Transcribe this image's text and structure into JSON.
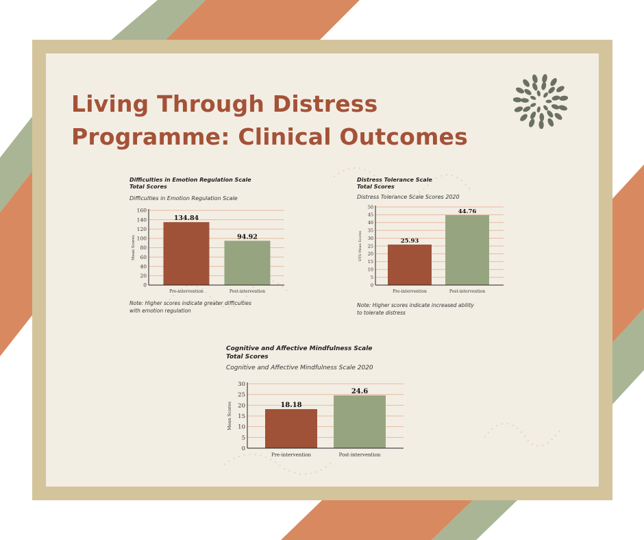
{
  "header": {
    "title_line1": "Living Through Distress",
    "title_line2": "Programme: Clinical Outcomes"
  },
  "logo": {
    "icon": "leaf-wreath-logo"
  },
  "colors": {
    "title": "#a45238",
    "pre_bar": "#9f5237",
    "post_bar": "#96a57f",
    "gridline": "#e7b8a2",
    "frame": "#d3c49b",
    "panel": "#f3eee4",
    "stripe_orange": "#d9895f",
    "stripe_green": "#a9b595"
  },
  "chart_data": [
    {
      "type": "bar",
      "title_line1": "Difficulties in Emotion Regulation Scale",
      "title_line2": "Total Scores",
      "subtitle": "Difficulties in Emotion Regulation Scale",
      "ylabel": "Mean Scores",
      "categories": [
        "Pre-intervention",
        "Post-intervention"
      ],
      "values": [
        134.84,
        94.92
      ],
      "value_labels": [
        "134.84",
        "94.92"
      ],
      "ylim": [
        0,
        160
      ],
      "yticks": [
        0,
        20,
        40,
        60,
        80,
        100,
        120,
        140,
        160
      ],
      "grid": true,
      "note_line1": "Note: Higher scores indicate greater difficulties",
      "note_line2": "with emotion regulation"
    },
    {
      "type": "bar",
      "title_line1": "Distress Tolerance Scale",
      "title_line2": "Total Scores",
      "subtitle": "Distress Tolerance Scale Scores 2020",
      "ylabel": "DTS Mean Scores",
      "categories": [
        "Pre-intervention",
        "Post-intervention"
      ],
      "values": [
        25.93,
        44.76
      ],
      "value_labels": [
        "25.93",
        "44.76"
      ],
      "ylim": [
        0,
        50
      ],
      "yticks": [
        0,
        5,
        10,
        15,
        20,
        25,
        30,
        35,
        40,
        45,
        50
      ],
      "grid": true,
      "note_line1": "Note: Higher scores indicate increased ability",
      "note_line2": "to tolerate distress"
    },
    {
      "type": "bar",
      "title_line1": "Cognitive and Affective Mindfulness Scale",
      "title_line2": "Total Scores",
      "subtitle": "Cognitive and Affective Mindfulness Scale 2020",
      "ylabel": "Mean Scores",
      "categories": [
        "Pre-intervention",
        "Post-intervention"
      ],
      "values": [
        18.18,
        24.6
      ],
      "value_labels": [
        "18.18",
        "24.6"
      ],
      "ylim": [
        0,
        30
      ],
      "yticks": [
        0,
        5,
        10,
        15,
        20,
        25,
        30
      ],
      "grid": true,
      "note_line1": "",
      "note_line2": ""
    }
  ]
}
